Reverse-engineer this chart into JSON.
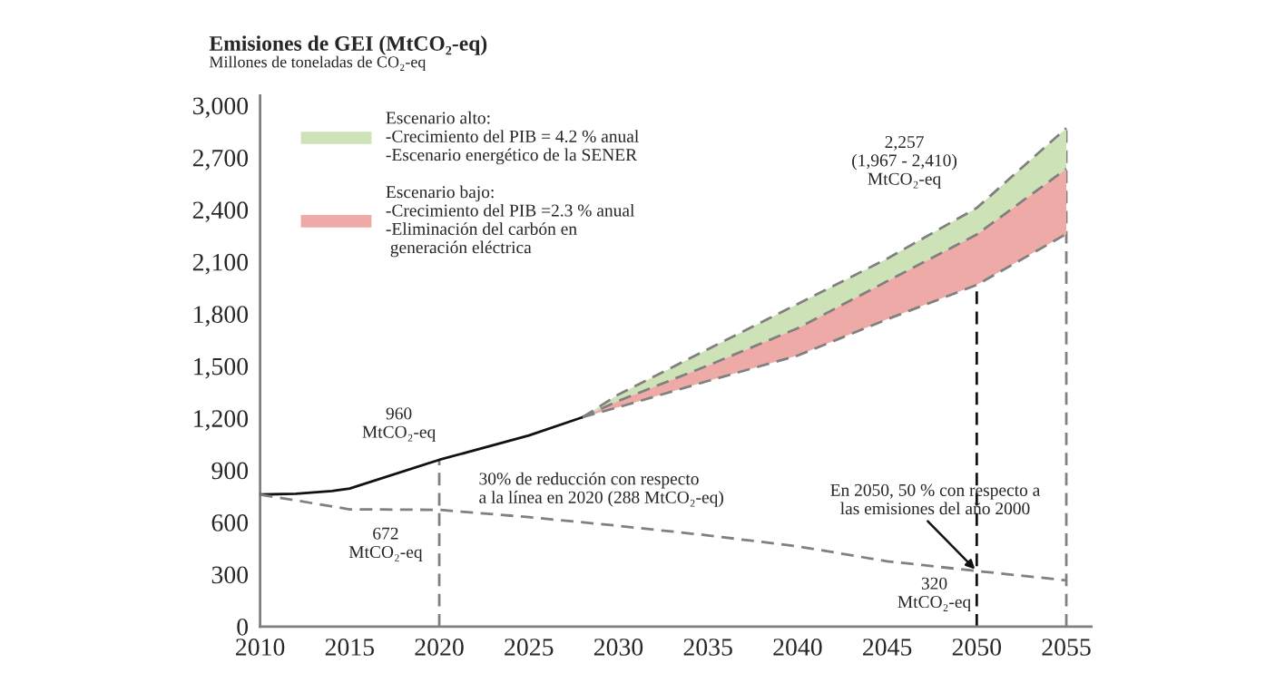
{
  "chart_data": {
    "type": "line",
    "title": "Emisiones de GEI (MtCO₂-eq)",
    "subtitle": "Millones de toneladas de CO₂-eq",
    "xlim": [
      2010,
      2056.4
    ],
    "ylim": [
      0,
      3057
    ],
    "xticks": [
      2010,
      2015,
      2020,
      2025,
      2030,
      2035,
      2040,
      2045,
      2050,
      2055
    ],
    "yticks": [
      0,
      300,
      600,
      900,
      {
        "value": 1200,
        "label": "1,200"
      },
      {
        "value": 1500,
        "label": "1,500"
      },
      {
        "value": 1800,
        "label": "1,800"
      },
      {
        "value": 2100,
        "label": "2,100"
      },
      {
        "value": 2400,
        "label": "2,400"
      },
      {
        "value": 2700,
        "label": "2,700"
      },
      {
        "value": 3000,
        "label": "3,000"
      }
    ],
    "grid": false,
    "legend": "top left",
    "series": [
      {
        "color": "#111111",
        "line_style": "solid",
        "x": [
          2010,
          2012,
          2014,
          2015,
          2020,
          2025,
          2028
        ],
        "values": [
          760,
          765,
          780,
          795,
          960,
          1100,
          1205
        ]
      },
      {
        "color": "#808080",
        "line_style": "dashed",
        "x": [
          2010,
          2015,
          2020,
          2025,
          2030,
          2035,
          2040,
          2045,
          2050,
          2055
        ],
        "values": [
          760,
          675,
          672,
          630,
          580,
          525,
          462,
          376,
          320,
          266
        ]
      },
      {
        "type": "area",
        "name": "Escenario alto:\n-Crecimiento del PIB = 4.2 % anual\n-Escenario energético de la SENER",
        "color": "#cde3b7",
        "line_style": "dashed",
        "x": [
          2028,
          2030,
          2035,
          2040,
          2045,
          2050,
          2055
        ],
        "values": [
          1205,
          1336,
          1597,
          1857,
          2118,
          2410,
          2870
        ]
      },
      {
        "type": "area",
        "name": "Escenario bajo:\n-Crecimiento del PIB =2.3 % anual\n-Eliminación del carbón en\n generación eléctrica",
        "color": "#eeaaa6",
        "line_style": "dashed",
        "x": [
          2028,
          2030,
          2035,
          2040,
          2045,
          2050,
          2055
        ],
        "values": [
          1205,
          1299,
          1503,
          1717,
          1988,
          2257,
          2635
        ]
      },
      {
        "color": "#808080",
        "line_style": "dashed",
        "x": [
          2028,
          2030,
          2035,
          2040,
          2045,
          2050,
          2055
        ],
        "values": [
          1205,
          1263,
          1414,
          1560,
          1769,
          1967,
          2260
        ]
      }
    ],
    "ref_lines": [
      {
        "axis": "x",
        "value": 2020,
        "color": "#808080",
        "line_style": "dashed"
      },
      {
        "axis": "x",
        "value": 2050,
        "color": "#111111",
        "line_style": "dashed"
      },
      {
        "axis": "x",
        "value": 2055,
        "color": "#808080",
        "line_style": "dashed"
      }
    ],
    "annotations": [
      "960\nMtCO₂-eq",
      "672\nMtCO₂-eq",
      "2,257\n(1,967 - 2,410)\nMtCO₂-eq",
      "320\nMtCO₂-eq",
      "30% de reducción con respecto\na la línea en 2020 (288 MtCO₂-eq)",
      {
        "text": "En 2050, 50 % con respecto a\nlas emisiones del año 2000",
        "x": 2050,
        "y": 320
      }
    ]
  }
}
